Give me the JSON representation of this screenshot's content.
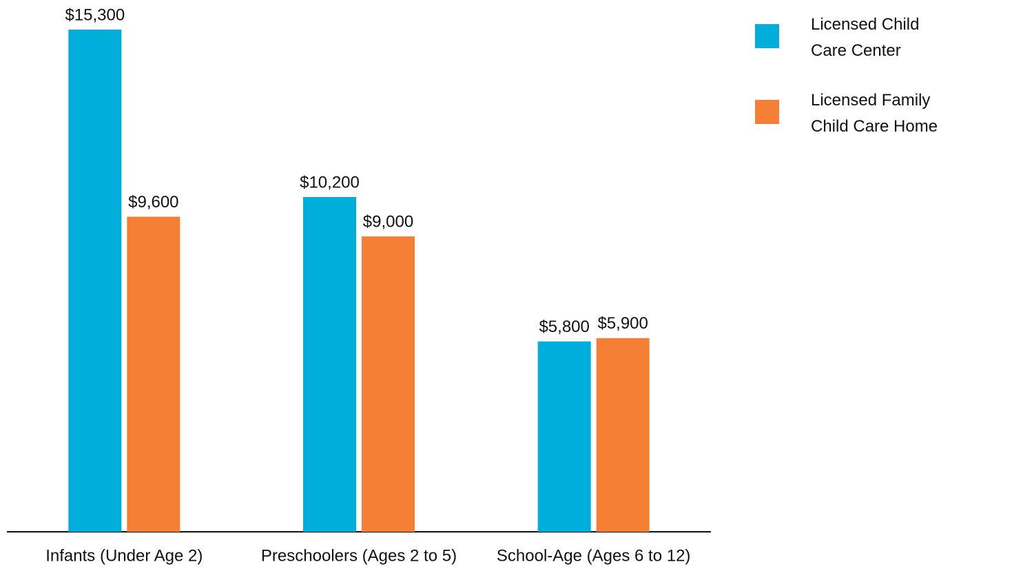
{
  "chart_data": {
    "type": "bar",
    "categories": [
      "Infants (Under Age 2)",
      "Preschoolers (Ages 2 to 5)",
      "School-Age (Ages 6 to 12)"
    ],
    "series": [
      {
        "name": "Licensed Child Care Center",
        "color": "#00aedb",
        "values": [
          15300,
          10200,
          5800
        ],
        "value_labels": [
          "$15,300",
          "$10,200",
          "$5,800"
        ]
      },
      {
        "name": "Licensed Family Child Care Home",
        "color": "#f47f35",
        "values": [
          9600,
          9000,
          5900
        ],
        "value_labels": [
          "$9,600",
          "$9,000",
          "$5,900"
        ]
      }
    ],
    "legend": "top-right"
  }
}
